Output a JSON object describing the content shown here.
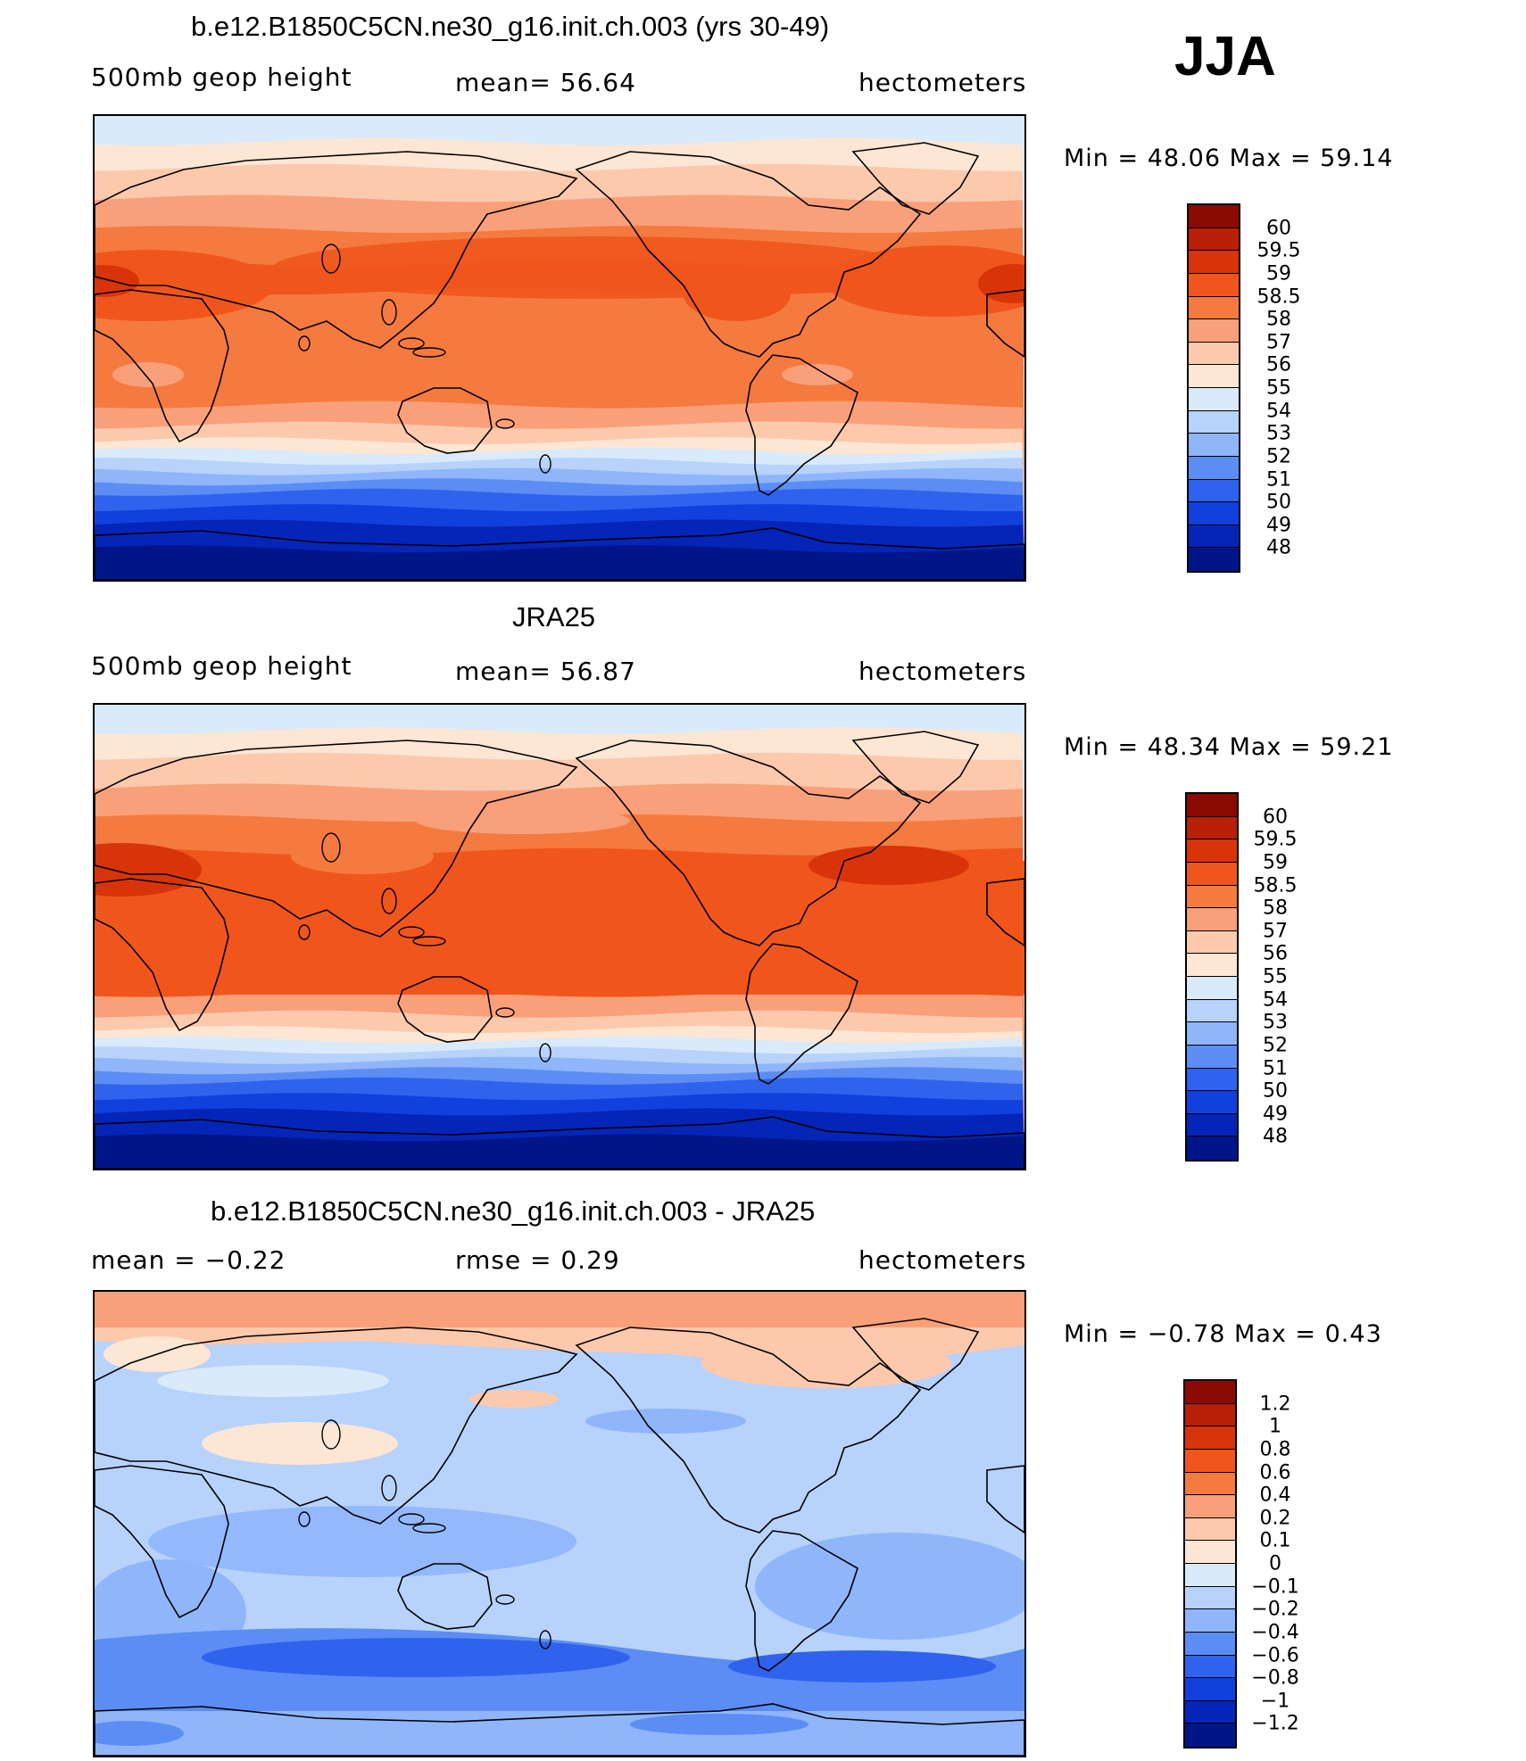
{
  "season": "JJA",
  "panels": [
    {
      "title": "b.e12.B1850C5CN.ne30_g16.init.ch.003 (yrs 30-49)",
      "variable": "500mb geop height",
      "stat": "mean=   56.64",
      "units": "hectometers",
      "minmax": "Min =    48.06  Max =    59.14",
      "levels": [
        "60",
        "59.5",
        "59",
        "58.5",
        "58",
        "57",
        "56",
        "55",
        "54",
        "53",
        "52",
        "51",
        "50",
        "49",
        "48"
      ],
      "colors": [
        "#8b0a02",
        "#b82007",
        "#d8340a",
        "#f0561c",
        "#f57a3f",
        "#f9a07a",
        "#fcc9ad",
        "#fde6d4",
        "#d9eafb",
        "#b7d2fb",
        "#8fb5fb",
        "#5b8df5",
        "#2f63ee",
        "#1240dd",
        "#0525b8",
        "#001688"
      ],
      "field": "model"
    },
    {
      "title": "JRA25",
      "variable": "500mb geop height",
      "stat": "mean=   56.87",
      "units": "hectometers",
      "minmax": "Min =    48.34  Max =    59.21",
      "levels": [
        "60",
        "59.5",
        "59",
        "58.5",
        "58",
        "57",
        "56",
        "55",
        "54",
        "53",
        "52",
        "51",
        "50",
        "49",
        "48"
      ],
      "colors": [
        "#8b0a02",
        "#b82007",
        "#d8340a",
        "#f0561c",
        "#f57a3f",
        "#f9a07a",
        "#fcc9ad",
        "#fde6d4",
        "#d9eafb",
        "#b7d2fb",
        "#8fb5fb",
        "#5b8df5",
        "#2f63ee",
        "#1240dd",
        "#0525b8",
        "#001688"
      ],
      "field": "obs"
    },
    {
      "title": "b.e12.B1850C5CN.ne30_g16.init.ch.003 - JRA25",
      "variable": "mean =   −0.22",
      "stat": "rmse =    0.29",
      "units": "hectometers",
      "minmax": "Min =   −0.78  Max =     0.43",
      "levels": [
        "1.2",
        "1",
        "0.8",
        "0.6",
        "0.4",
        "0.2",
        "0.1",
        "0",
        "−0.1",
        "−0.2",
        "−0.4",
        "−0.6",
        "−0.8",
        "−1",
        "−1.2"
      ],
      "colors": [
        "#8b0a02",
        "#b82007",
        "#d8340a",
        "#f0561c",
        "#f57a3f",
        "#f9a07a",
        "#fcc9ad",
        "#fde6d4",
        "#d9eafb",
        "#b7d2fb",
        "#8fb5fb",
        "#5b8df5",
        "#2f63ee",
        "#1240dd",
        "#0525b8",
        "#001688"
      ],
      "field": "diff"
    }
  ]
}
